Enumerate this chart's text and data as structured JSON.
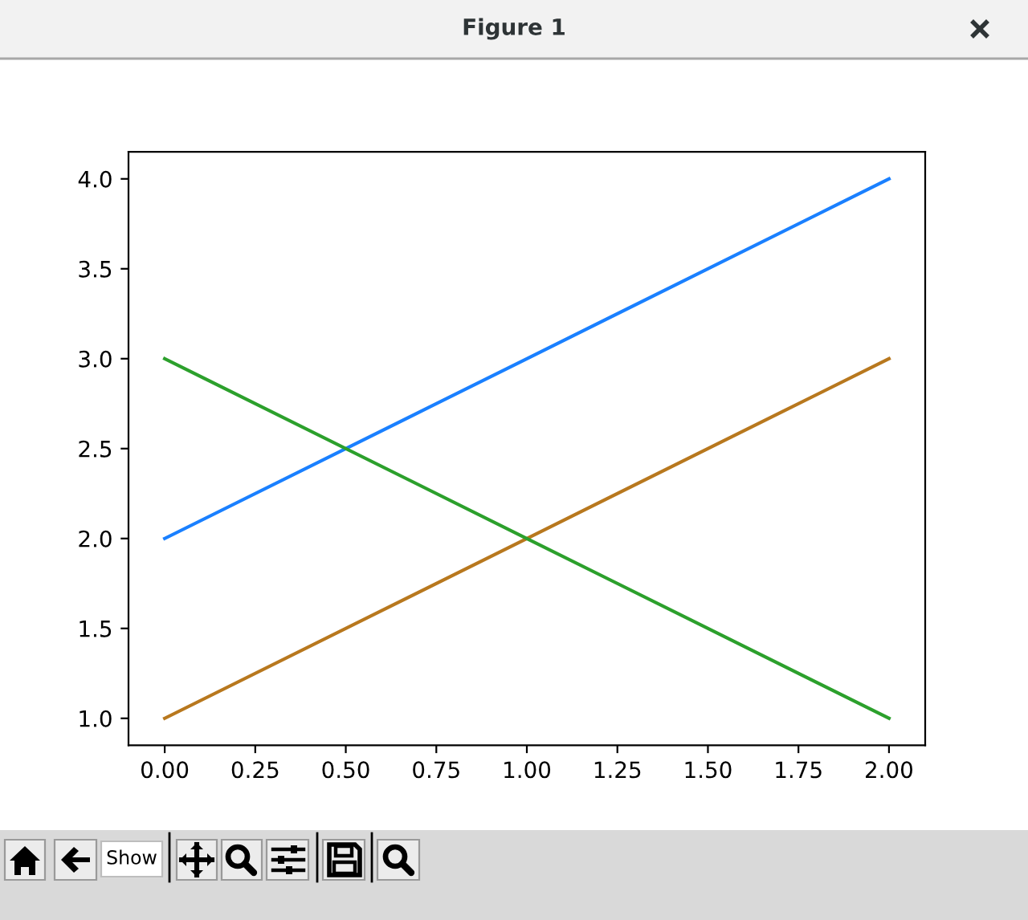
{
  "chart_data": {
    "type": "line",
    "title": "Figure 1",
    "annotations": [
      "Show"
    ],
    "x": [
      0,
      1,
      2
    ],
    "series": [
      {
        "color": "#1a80ff",
        "values": [
          2,
          3,
          4
        ]
      },
      {
        "color": "#b8781e",
        "values": [
          1,
          2,
          3
        ]
      },
      {
        "color": "#2ca02c",
        "values": [
          3,
          2,
          1
        ]
      }
    ],
    "xlim": [
      -0.1,
      2.1
    ],
    "ylim": [
      0.85,
      4.15
    ],
    "xticks": [
      {
        "value": 0,
        "label": "0.00"
      },
      {
        "value": 0.25,
        "label": "0.25"
      },
      {
        "value": 0.5,
        "label": "0.50"
      },
      {
        "value": 0.75,
        "label": "0.75"
      },
      {
        "value": 1,
        "label": "1.00"
      },
      {
        "value": 1.25,
        "label": "1.25"
      },
      {
        "value": 1.5,
        "label": "1.50"
      },
      {
        "value": 1.75,
        "label": "1.75"
      },
      {
        "value": 2,
        "label": "2.00"
      }
    ],
    "yticks": [
      {
        "value": 1,
        "label": "1.0"
      },
      {
        "value": 1.5,
        "label": "1.5"
      },
      {
        "value": 2,
        "label": "2.0"
      },
      {
        "value": 2.5,
        "label": "2.5"
      },
      {
        "value": 3,
        "label": "3.0"
      },
      {
        "value": 3.5,
        "label": "3.5"
      },
      {
        "value": 4,
        "label": "4.0"
      }
    ]
  }
}
